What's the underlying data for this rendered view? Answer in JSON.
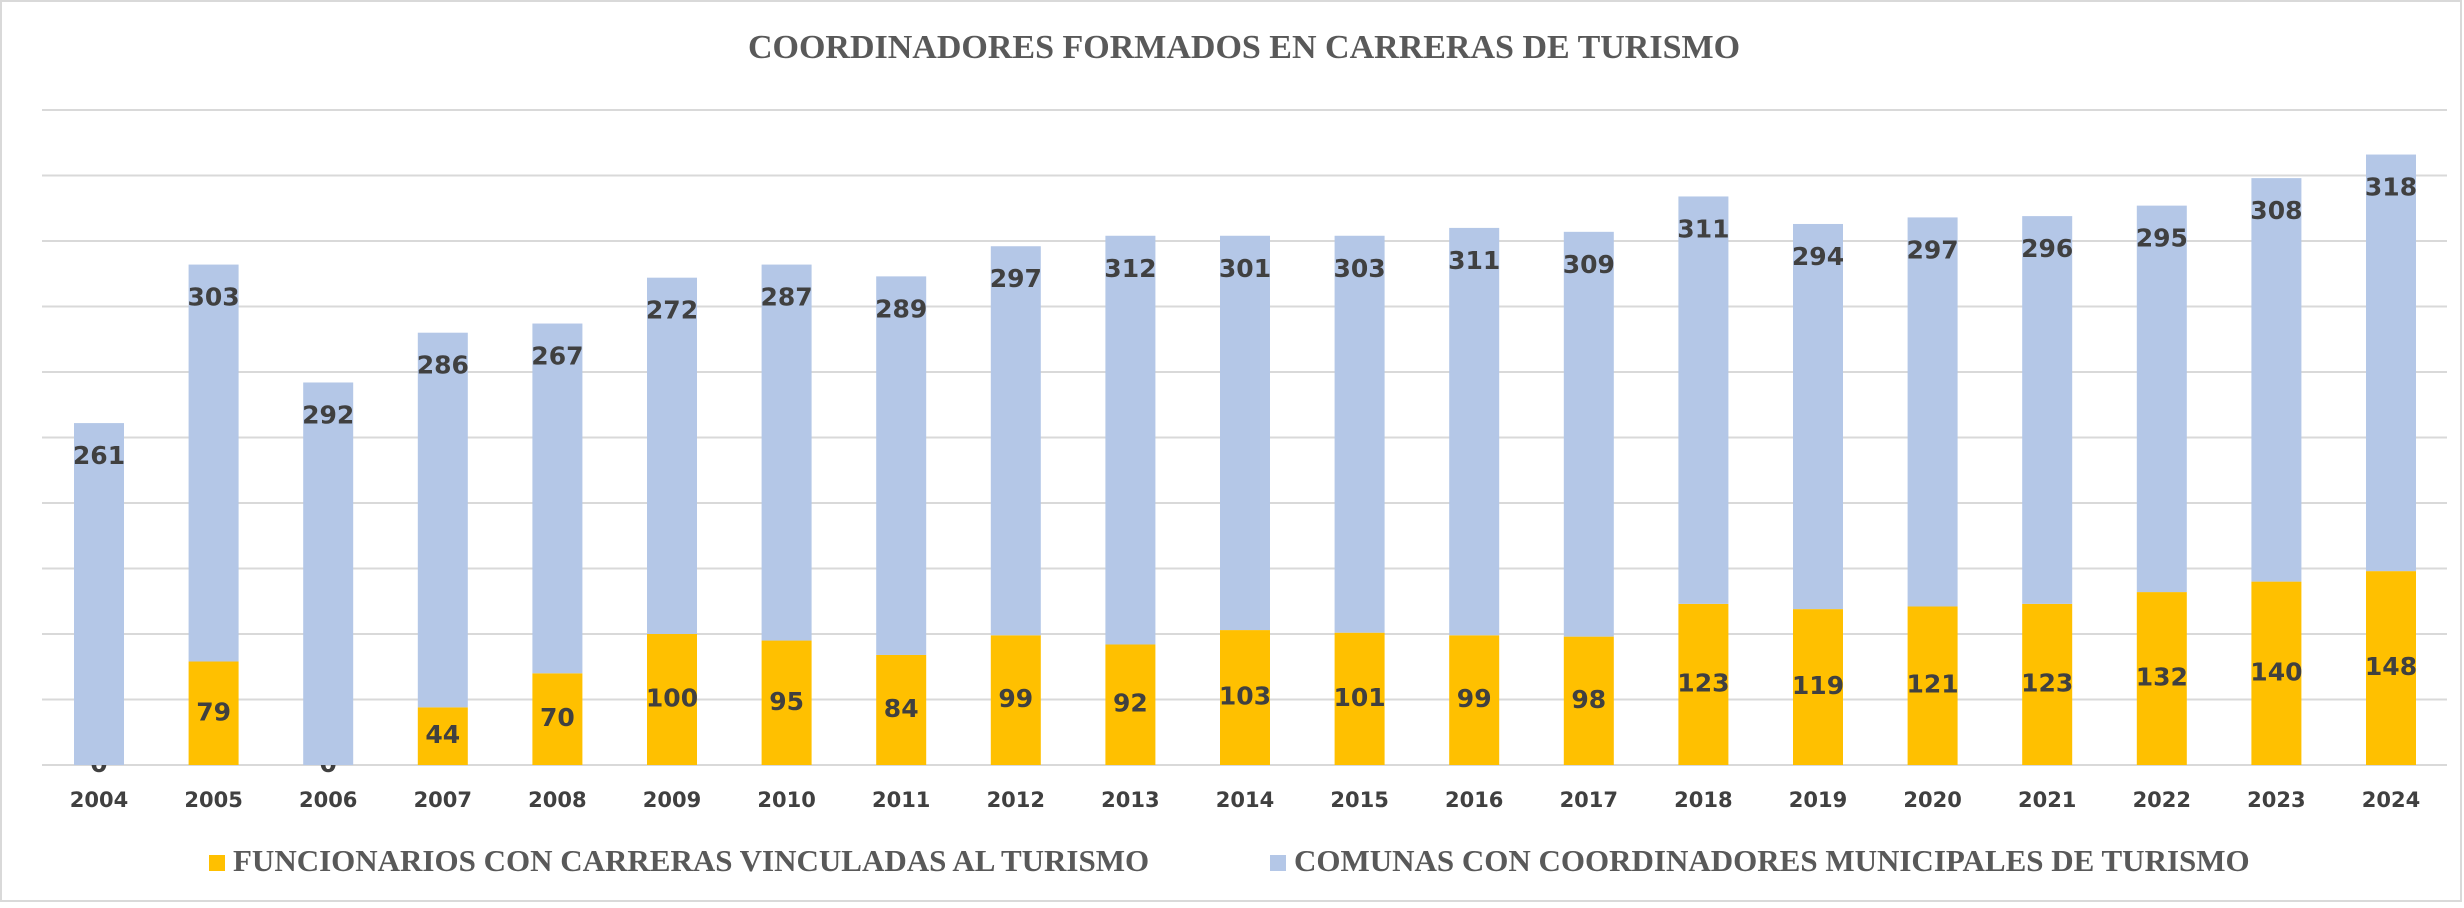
{
  "chart_data": {
    "type": "stacked_bar",
    "title": "COORDINADORES FORMADOS EN CARRERAS DE TURISMO",
    "categories": [
      "2004",
      "2005",
      "2006",
      "2007",
      "2008",
      "2009",
      "2010",
      "2011",
      "2012",
      "2013",
      "2014",
      "2015",
      "2016",
      "2017",
      "2018",
      "2019",
      "2020",
      "2021",
      "2022",
      "2023",
      "2024"
    ],
    "series": [
      {
        "name": "FUNCIONARIOS CON CARRERAS VINCULADAS AL TURISMO",
        "color": "#ffc000",
        "values": [
          0,
          79,
          0,
          44,
          70,
          100,
          95,
          84,
          99,
          92,
          103,
          101,
          99,
          98,
          123,
          119,
          121,
          123,
          132,
          140,
          148
        ]
      },
      {
        "name": "COMUNAS CON COORDINADORES MUNICIPALES DE TURISMO",
        "color": "#b4c7e7",
        "values": [
          261,
          303,
          292,
          286,
          267,
          272,
          287,
          289,
          297,
          312,
          301,
          303,
          311,
          309,
          311,
          294,
          297,
          296,
          295,
          308,
          318
        ]
      }
    ],
    "ylim": [
      0,
      500
    ],
    "yticks": [
      0,
      50,
      100,
      150,
      200,
      250,
      300,
      350,
      400,
      450,
      500
    ],
    "grid": true,
    "legend": "bottom"
  }
}
